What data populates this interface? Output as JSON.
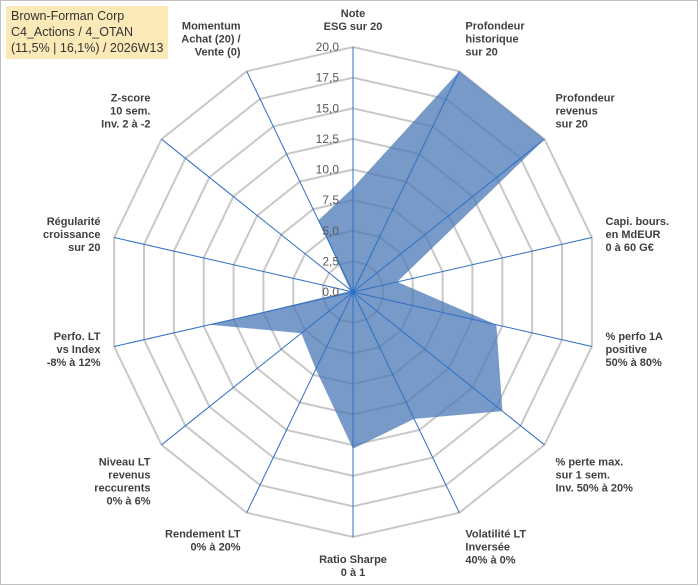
{
  "title_box": {
    "line1": "Brown-Forman Corp",
    "line2": "C4_Actions / 4_OTAN",
    "line3": "(11,5% | 16,1%) / 2026W13"
  },
  "colors": {
    "fill": "#4a78b5",
    "fill_opacity": 0.75,
    "grid": "#c8c8c8",
    "spoke": "#2e6fc4",
    "title_bg": "#fce9b8"
  },
  "chart_data": {
    "type": "radar",
    "rmax": 20,
    "ticks": [
      "0,0",
      "2,5",
      "5,0",
      "7,5",
      "10,0",
      "12,5",
      "15,0",
      "17,5",
      "20,0"
    ],
    "axes": [
      {
        "label": [
          "Note",
          "ESG sur 20"
        ],
        "value": 8.5
      },
      {
        "label": [
          "Profondeur",
          "historique",
          "sur 20"
        ],
        "value": 20
      },
      {
        "label": [
          "Profondeur",
          "revenus",
          "sur 20"
        ],
        "value": 20
      },
      {
        "label": [
          "Capi. bours.",
          "en MdEUR",
          "0 à 60 G€"
        ],
        "value": 3.7
      },
      {
        "label": [
          "% perfo 1A",
          "positive",
          "50% à 80%"
        ],
        "value": 12.0
      },
      {
        "label": [
          "% perte max.",
          "sur 1 sem.",
          "Inv. 50% à 20%"
        ],
        "value": 15.6
      },
      {
        "label": [
          "Volatilité LT",
          "Inversée",
          "40% à 0%"
        ],
        "value": 11.5
      },
      {
        "label": [
          "Ratio Sharpe",
          "0 à 1"
        ],
        "value": 12.8
      },
      {
        "label": [
          "Rendement LT",
          "0% à 20%"
        ],
        "value": 7.0
      },
      {
        "label": [
          "Niveau LT",
          "revenus",
          "reccurents",
          "0% à 6%"
        ],
        "value": 5.4
      },
      {
        "label": [
          "Perfo. LT",
          "vs Index",
          "-8% à 12%"
        ],
        "value": 12.0
      },
      {
        "label": [
          "Régularité",
          "croissance",
          "sur 20"
        ],
        "value": 0.3
      },
      {
        "label": [
          "Z-score",
          "10 sem.",
          "Inv. 2 à -2"
        ],
        "value": 0.3
      },
      {
        "label": [
          "Momentum",
          "Achat (20) /",
          "Vente (0)"
        ],
        "value": 6.5
      }
    ]
  }
}
